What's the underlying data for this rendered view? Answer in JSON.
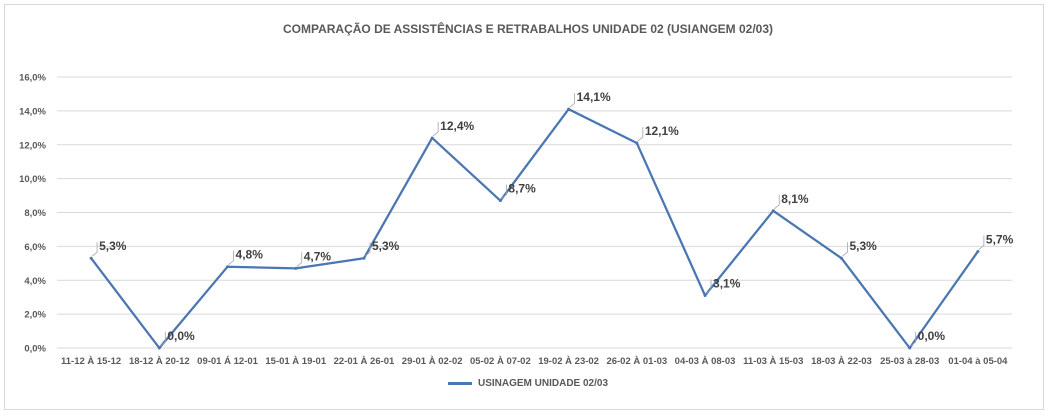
{
  "chart_data": {
    "type": "line",
    "title": "COMPARAÇÃO DE ASSISTÊNCIAS E RETRABALHOS UNIDADE 02  (USIANGEM 02/03)",
    "categories": [
      "11-12 À 15-12",
      "18-12 À 20-12",
      "09-01 Á 12-01",
      "15-01 À 19-01",
      "22-01 À 26-01",
      "29-01 À 02-02",
      "05-02 À 07-02",
      "19-02 À 23-02",
      "26-02 À 01-03",
      "04-03 À 08-03",
      "11-03 À 15-03",
      "18-03 À 22-03",
      "25-03 à 28-03",
      "01-04 à 05-04"
    ],
    "series": [
      {
        "name": "USINAGEM UNIDADE 02/03",
        "values": [
          5.3,
          0.0,
          4.8,
          4.7,
          5.3,
          12.4,
          8.7,
          14.1,
          12.1,
          3.1,
          8.1,
          5.3,
          0.0,
          5.7
        ]
      }
    ],
    "data_labels": [
      "5,3%",
      "0,0%",
      "4,8%",
      "4,7%",
      "5,3%",
      "12,4%",
      "8,7%",
      "14,1%",
      "12,1%",
      "3,1%",
      "8,1%",
      "5,3%",
      "0,0%",
      "5,7%"
    ],
    "ylim": [
      0,
      16
    ],
    "yticks": [
      "0,0%",
      "2,0%",
      "4,0%",
      "6,0%",
      "8,0%",
      "10,0%",
      "12,0%",
      "14,0%",
      "16,0%"
    ],
    "grid": true,
    "legend_position": "bottom",
    "line_color": "#4a76b2",
    "grid_color": "#d9d9d9"
  }
}
